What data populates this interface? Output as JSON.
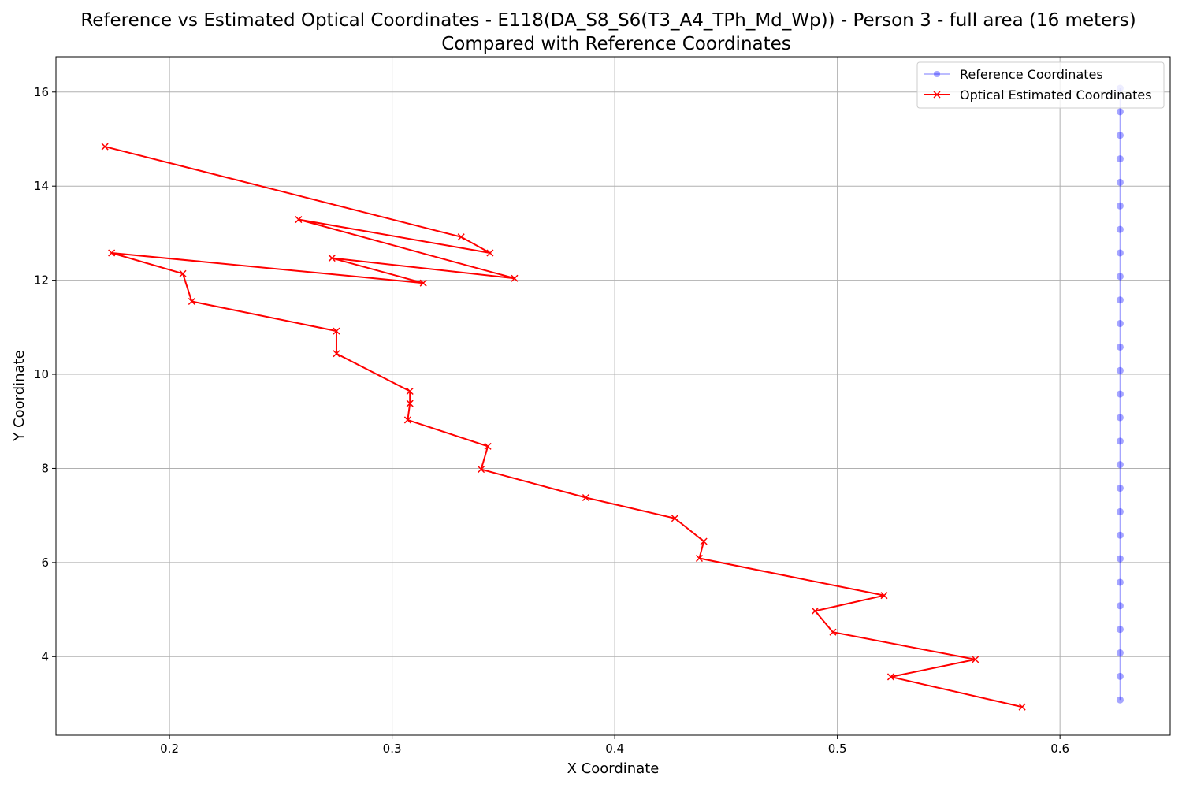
{
  "chart_data": {
    "type": "line",
    "title": "Reference vs Estimated Optical Coordinates - E118(DA_S8_S6(T3_A4_TPh_Md_Wp)) - Person 3 - full area (16 meters)",
    "subtitle": "Compared with Reference Coordinates",
    "xlabel": "X Coordinate",
    "ylabel": "Y Coordinate",
    "xlim": [
      0.149,
      0.6495
    ],
    "ylim": [
      2.33,
      16.75
    ],
    "xticks": [
      0.2,
      0.3,
      0.4,
      0.5,
      0.6
    ],
    "xtick_labels": [
      "0.2",
      "0.3",
      "0.4",
      "0.5",
      "0.6"
    ],
    "yticks": [
      4,
      6,
      8,
      10,
      12,
      14,
      16
    ],
    "ytick_labels": [
      "4",
      "6",
      "8",
      "10",
      "12",
      "14",
      "16"
    ],
    "grid": true,
    "legend_position": "top-right",
    "series": [
      {
        "name": "Reference Coordinates",
        "color": "#0000ff",
        "marker": "circle",
        "points": [
          [
            0.627,
            3.08
          ],
          [
            0.627,
            3.58
          ],
          [
            0.627,
            4.08
          ],
          [
            0.627,
            4.58
          ],
          [
            0.627,
            5.08
          ],
          [
            0.627,
            5.58
          ],
          [
            0.627,
            6.08
          ],
          [
            0.627,
            6.58
          ],
          [
            0.627,
            7.08
          ],
          [
            0.627,
            7.58
          ],
          [
            0.627,
            8.08
          ],
          [
            0.627,
            8.58
          ],
          [
            0.627,
            9.08
          ],
          [
            0.627,
            9.58
          ],
          [
            0.627,
            10.08
          ],
          [
            0.627,
            10.58
          ],
          [
            0.627,
            11.08
          ],
          [
            0.627,
            11.58
          ],
          [
            0.627,
            12.08
          ],
          [
            0.627,
            12.58
          ],
          [
            0.627,
            13.08
          ],
          [
            0.627,
            13.58
          ],
          [
            0.627,
            14.08
          ],
          [
            0.627,
            14.58
          ],
          [
            0.627,
            15.08
          ],
          [
            0.627,
            15.58
          ],
          [
            0.627,
            16.08
          ]
        ]
      },
      {
        "name": "Optical Estimated Coordinates",
        "color": "#ff0000",
        "marker": "x",
        "points": [
          [
            0.583,
            2.93
          ],
          [
            0.524,
            3.57
          ],
          [
            0.562,
            3.94
          ],
          [
            0.498,
            4.52
          ],
          [
            0.49,
            4.97
          ],
          [
            0.521,
            5.3
          ],
          [
            0.438,
            6.09
          ],
          [
            0.44,
            6.45
          ],
          [
            0.427,
            6.94
          ],
          [
            0.387,
            7.38
          ],
          [
            0.34,
            7.98
          ],
          [
            0.343,
            8.47
          ],
          [
            0.307,
            9.03
          ],
          [
            0.308,
            9.38
          ],
          [
            0.308,
            9.64
          ],
          [
            0.275,
            10.44
          ],
          [
            0.275,
            10.92
          ],
          [
            0.21,
            11.55
          ],
          [
            0.206,
            12.14
          ],
          [
            0.174,
            12.58
          ],
          [
            0.314,
            11.94
          ],
          [
            0.273,
            12.47
          ],
          [
            0.355,
            12.04
          ],
          [
            0.258,
            13.29
          ],
          [
            0.344,
            12.58
          ],
          [
            0.331,
            12.92
          ],
          [
            0.171,
            14.84
          ]
        ]
      }
    ]
  }
}
